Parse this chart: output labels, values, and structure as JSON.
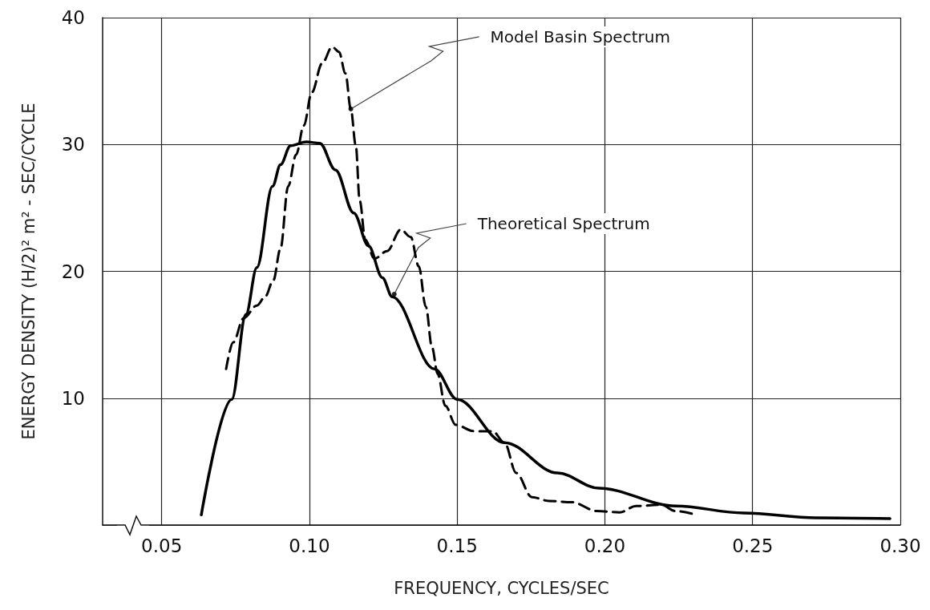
{
  "chart_data": {
    "type": "line",
    "xlabel": "FREQUENCY, CYCLES/SEC",
    "ylabel": "ENERGY DENSITY (H/2)² m² - SEC/CYCLE",
    "xlim": [
      0.03,
      0.3
    ],
    "ylim": [
      0,
      40
    ],
    "xticks": [
      {
        "value": 0.05,
        "label": "0.05"
      },
      {
        "value": 0.1,
        "label": "0.10"
      },
      {
        "value": 0.15,
        "label": "0.15"
      },
      {
        "value": 0.2,
        "label": "0.20"
      },
      {
        "value": 0.25,
        "label": "0.25"
      },
      {
        "value": 0.3,
        "label": "0.30"
      }
    ],
    "yticks": [
      {
        "value": 0,
        "label": null
      },
      10,
      20,
      30,
      40
    ],
    "grid": true,
    "marker": "none",
    "series": [
      {
        "color": "#000000",
        "line_style": "solid",
        "x": [
          0.0634,
          0.0737,
          0.0785,
          0.0822,
          0.0875,
          0.0902,
          0.0936,
          0.099,
          0.1035,
          0.1088,
          0.115,
          0.12,
          0.1247,
          0.128,
          0.1423,
          0.15,
          0.166,
          0.184,
          0.198,
          0.224,
          0.247,
          0.2715,
          0.2965
        ],
        "values": [
          0.8,
          9.9,
          16.6,
          20.3,
          26.7,
          28.4,
          29.9,
          30.2,
          30.1,
          28.0,
          24.6,
          22.0,
          19.5,
          18.0,
          12.3,
          9.9,
          6.5,
          4.1,
          2.9,
          1.5,
          0.95,
          0.57,
          0.5
        ]
      },
      {
        "color": "#000000",
        "line_style": "dashed",
        "x": [
          0.0718,
          0.0742,
          0.0777,
          0.0822,
          0.085,
          0.0878,
          0.0902,
          0.0928,
          0.0955,
          0.0981,
          0.1008,
          0.1043,
          0.1077,
          0.11,
          0.1122,
          0.114,
          0.1157,
          0.117,
          0.1189,
          0.122,
          0.1263,
          0.1309,
          0.1343,
          0.137,
          0.1394,
          0.1415,
          0.1434,
          0.146,
          0.1495,
          0.1556,
          0.162,
          0.166,
          0.17,
          0.1753,
          0.181,
          0.1888,
          0.1973,
          0.205,
          0.2106,
          0.219,
          0.224,
          0.231
        ],
        "values": [
          12.3,
          14.4,
          16.3,
          17.3,
          18.0,
          19.3,
          21.8,
          26.7,
          29.2,
          31.5,
          34.1,
          36.4,
          37.7,
          37.3,
          35.6,
          32.8,
          29.9,
          25.6,
          22.5,
          21.0,
          21.6,
          23.3,
          22.7,
          20.4,
          17.2,
          14.0,
          11.9,
          9.4,
          7.9,
          7.4,
          7.4,
          6.5,
          4.1,
          2.2,
          1.9,
          1.8,
          1.1,
          1.0,
          1.5,
          1.6,
          1.1,
          0.8
        ]
      }
    ],
    "annotations": [
      {
        "text": "Model Basin Spectrum",
        "x": 0.114,
        "y": 32.8
      },
      {
        "text": "Theoretical Spectrum",
        "x": 0.1287,
        "y": 18.2
      }
    ]
  }
}
